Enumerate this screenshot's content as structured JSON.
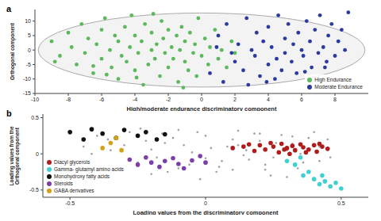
{
  "chart_data": [
    {
      "type": "scatter",
      "panel": "a",
      "x_label": "High/moderate endurance discriminatory component",
      "y_label": "Orthogonal component",
      "xlim": [
        -10,
        10
      ],
      "ylim": [
        -15,
        14
      ],
      "xticks": [
        -10,
        -8,
        -6,
        -4,
        -2,
        0,
        2,
        4,
        6,
        8
      ],
      "yticks": [
        -15,
        -10,
        -5,
        0,
        5,
        10
      ],
      "legend": "lower right",
      "ellipse": {
        "x": [
          -9.8,
          9.8
        ],
        "y": [
          -12.8,
          12.8
        ]
      },
      "series": [
        {
          "name": "High Endurance",
          "color": "#5cb85c",
          "x": [
            -9,
            -8.5,
            -8,
            -7.8,
            -7.5,
            -7.2,
            -7,
            -6.8,
            -6.5,
            -6.3,
            -6,
            -6,
            -5.8,
            -5.5,
            -5.4,
            -5.2,
            -5,
            -5,
            -4.8,
            -4.6,
            -4.5,
            -4.3,
            -4.2,
            -4,
            -4,
            -3.8,
            -3.6,
            -3.5,
            -3.4,
            -3.2,
            -3,
            -3,
            -2.8,
            -2.7,
            -2.5,
            -2.4,
            -2.3,
            -2.2,
            -2,
            -2,
            -1.8,
            -1.7,
            -1.5,
            -1.4,
            -1.3,
            -1.2,
            -1,
            -1,
            -0.8,
            -0.7,
            -0.5,
            -0.4,
            -0.3,
            -0.2,
            0,
            0.2,
            0.4,
            0.5,
            0.8,
            1,
            1.2,
            1.5,
            1.8,
            2,
            -6.5,
            -3.9,
            -2.9,
            -8.8,
            -5.7,
            -1.1
          ],
          "y": [
            3,
            -2,
            6,
            1,
            -5,
            9,
            -1,
            4,
            -8,
            2,
            7,
            -3,
            11,
            0,
            -6,
            5,
            -10,
            3,
            -2,
            8,
            -4,
            1,
            12,
            -7,
            5,
            -1,
            3,
            -12,
            9,
            -5,
            0,
            6,
            -3,
            2,
            -9,
            10,
            4,
            -1,
            7,
            -6,
            1,
            -3,
            5,
            -11,
            0,
            8,
            -4,
            3,
            -7,
            6,
            -1,
            2,
            -9,
            11,
            -2,
            4,
            -5,
            1,
            7,
            -3,
            0,
            -6,
            3,
            -1,
            -5.5,
            -9.5,
            12.5,
            -4,
            -8.5,
            -13
          ]
        },
        {
          "name": "Moderate Endurance",
          "color": "#2b3a9e",
          "x": [
            0.5,
            1,
            1.3,
            1.5,
            2,
            2.2,
            2.5,
            2.7,
            3,
            3.2,
            3.3,
            3.5,
            3.7,
            4,
            4,
            4.2,
            4.5,
            4.6,
            4.8,
            5,
            5,
            5.2,
            5.4,
            5.5,
            5.7,
            5.8,
            6,
            6.1,
            6.3,
            6.5,
            6.6,
            6.8,
            7,
            7.1,
            7.3,
            7.5,
            7.6,
            7.8,
            8,
            8.2,
            8.4,
            8.6,
            8.8,
            2.8,
            3.9,
            1.8,
            0.9,
            4.4,
            6.2,
            7.4
          ],
          "y": [
            -8,
            5,
            -11,
            9,
            -4,
            2,
            -7,
            11,
            0,
            -2,
            6,
            -9,
            3,
            -5,
            8,
            1,
            -3,
            12,
            -7,
            4,
            -1,
            9,
            -4,
            2,
            -8,
            6,
            0,
            -2,
            10,
            3,
            -6,
            7,
            -1,
            12,
            1,
            -4,
            5,
            9,
            -2,
            3,
            7,
            0,
            13,
            -12,
            -11,
            -1,
            1,
            -10,
            -7.5,
            -6
          ]
        }
      ]
    },
    {
      "type": "scatter",
      "panel": "b",
      "x_label": "Loading values from the discriminatory component",
      "y_label": "Loading values from the Orthogonal component",
      "xlim": [
        -0.6,
        0.6
      ],
      "ylim": [
        -0.6,
        0.55
      ],
      "xticks": [
        -0.5,
        0,
        0.5
      ],
      "yticks": [
        -0.5,
        0,
        0.5
      ],
      "legend": "lower left",
      "background_points": {
        "color": "#a0a0a0",
        "x": [
          -0.45,
          -0.4,
          -0.35,
          -0.28,
          -0.22,
          -0.18,
          -0.12,
          -0.08,
          -0.03,
          0.02,
          0.06,
          0.1,
          0.14,
          0.18,
          0.22,
          0.26,
          0.3,
          0.34,
          0.38,
          0.42,
          0.46,
          -0.42,
          -0.36,
          -0.3,
          -0.25,
          -0.2,
          -0.15,
          -0.1,
          -0.05,
          0,
          0.04,
          0.08,
          0.12,
          0.16,
          0.2,
          0.24,
          0.28,
          0.32,
          0.36,
          0.4,
          -0.2,
          -0.14,
          -0.06,
          0.05,
          0.15,
          0.25,
          0.35,
          0.45,
          -0.24,
          -0.02,
          0.1,
          0.2,
          0.3,
          -0.1,
          0,
          0.12,
          0.22,
          0.32,
          0.42,
          -0.16
        ],
        "y": [
          0.1,
          0.25,
          0.05,
          0.3,
          0.18,
          -0.05,
          0.22,
          0.12,
          0.3,
          0.08,
          -0.1,
          0.2,
          -0.02,
          0.28,
          -0.15,
          0.15,
          0.05,
          -0.2,
          0.22,
          0.1,
          -0.05,
          0,
          0.2,
          0.12,
          -0.12,
          0.06,
          0.15,
          -0.2,
          0.02,
          0.25,
          -0.25,
          0.1,
          0.32,
          -0.08,
          0.18,
          -0.3,
          0.26,
          0.14,
          -0.12,
          0.3,
          -0.28,
          -0.25,
          -0.15,
          -0.18,
          0.05,
          -0.05,
          0,
          0.2,
          0.35,
          -0.35,
          -0.22,
          0.28,
          -0.32,
          0.33,
          -0.06,
          0.12,
          -0.22,
          0.24,
          -0.1,
          0.28
        ]
      },
      "series": [
        {
          "name": "Diacyl glycerols",
          "color": "#b01c1c",
          "x": [
            0.1,
            0.14,
            0.18,
            0.2,
            0.22,
            0.25,
            0.27,
            0.28,
            0.3,
            0.32,
            0.33,
            0.35,
            0.36,
            0.38,
            0.4,
            0.41,
            0.43,
            0.45,
            0.24,
            0.31,
            0.37,
            0.42,
            0.16,
            0.29
          ],
          "y": [
            0.08,
            0.1,
            0.04,
            0.12,
            0.06,
            0.1,
            0.02,
            0.14,
            0.08,
            0.11,
            0.05,
            0.13,
            0.09,
            0.06,
            0.12,
            0.03,
            0.1,
            0.07,
            0.15,
            0,
            0.02,
            0.14,
            0.13,
            0.06
          ]
        },
        {
          "name": "Gamma- glutamyl amino acids",
          "color": "#3fd1d1",
          "x": [
            0.3,
            0.33,
            0.36,
            0.38,
            0.4,
            0.42,
            0.44,
            0.46,
            0.48,
            0.5,
            0.35,
            0.43
          ],
          "y": [
            -0.1,
            -0.15,
            -0.3,
            -0.25,
            -0.35,
            -0.42,
            -0.38,
            -0.45,
            -0.4,
            -0.48,
            -0.05,
            -0.3
          ]
        },
        {
          "name": "Monohydroxy fatty acids",
          "color": "#111111",
          "x": [
            -0.5,
            -0.45,
            -0.42,
            -0.38,
            -0.33,
            -0.3,
            -0.25,
            -0.22,
            -0.18,
            -0.15
          ],
          "y": [
            0.3,
            0.2,
            0.34,
            0.28,
            0.22,
            0.33,
            0.25,
            0.3,
            0.2,
            0.27
          ]
        },
        {
          "name": "Steroids",
          "color": "#7b3fa8",
          "x": [
            -0.28,
            -0.25,
            -0.22,
            -0.2,
            -0.17,
            -0.15,
            -0.12,
            -0.1,
            -0.08,
            -0.05,
            -0.02,
            0
          ],
          "y": [
            -0.08,
            -0.15,
            -0.05,
            -0.12,
            -0.18,
            -0.1,
            -0.06,
            -0.14,
            -0.2,
            -0.09,
            -0.03,
            -0.12
          ]
        },
        {
          "name": "GABA derivatives",
          "color": "#d4a017",
          "x": [
            -0.38,
            -0.35,
            -0.33,
            -0.31
          ],
          "y": [
            0.08,
            0.15,
            0.22,
            0.05
          ]
        }
      ]
    }
  ]
}
